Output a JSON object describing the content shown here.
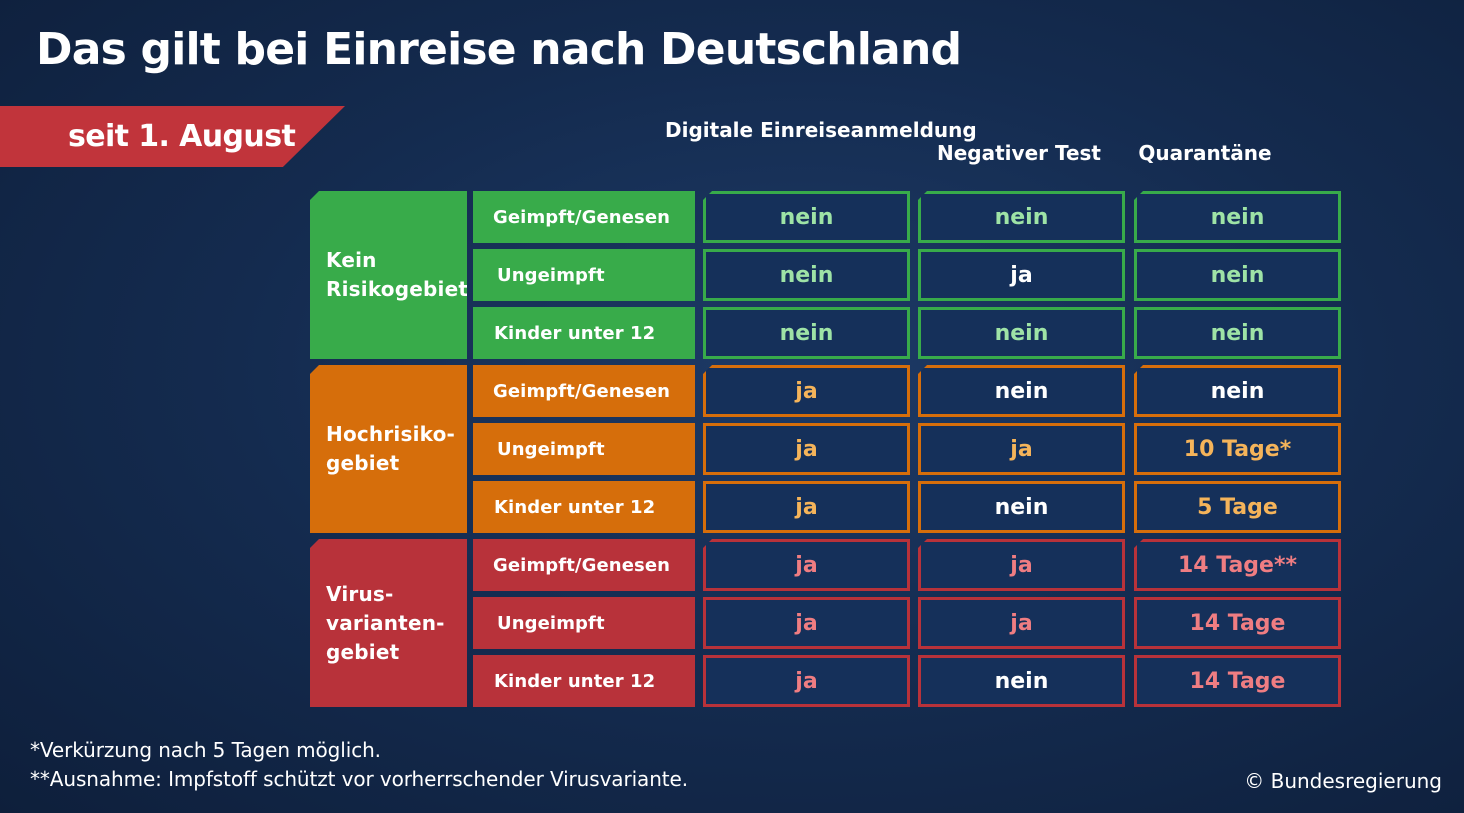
{
  "title": "Das gilt bei Einreise nach Deutschland",
  "banner": "seit 1. August",
  "columns": [
    "Digitale\nEinreiseanmeldung",
    "Negativer Test",
    "Quarantäne"
  ],
  "colors": {
    "green": "#38ab4a",
    "orange": "#d66e0b",
    "red": "#b8323a",
    "green_text": "#9ee3a6",
    "orange_text": "#f5b45a",
    "red_text": "#ef7d82",
    "cell_bg": "#15305a"
  },
  "groups": [
    {
      "label": "Kein\nRisikogebiet",
      "color": "green",
      "rows": [
        {
          "label": "Geimpft/Genesen",
          "values": [
            "nein",
            "nein",
            "nein"
          ]
        },
        {
          "label": "Ungeimpft",
          "values": [
            "nein",
            "ja",
            "nein"
          ]
        },
        {
          "label": "Kinder unter 12",
          "values": [
            "nein",
            "nein",
            "nein"
          ]
        }
      ]
    },
    {
      "label": "Hochrisiko-\ngebiet",
      "color": "orange",
      "rows": [
        {
          "label": "Geimpft/Genesen",
          "values": [
            "ja",
            "nein",
            "nein"
          ]
        },
        {
          "label": "Ungeimpft",
          "values": [
            "ja",
            "ja",
            "10 Tage*"
          ]
        },
        {
          "label": "Kinder unter 12",
          "values": [
            "ja",
            "nein",
            "5 Tage"
          ]
        }
      ]
    },
    {
      "label": "Virus-\nvarianten-\ngebiet",
      "color": "red",
      "rows": [
        {
          "label": "Geimpft/Genesen",
          "values": [
            "ja",
            "ja",
            "14 Tage**"
          ]
        },
        {
          "label": "Ungeimpft",
          "values": [
            "ja",
            "ja",
            "14 Tage"
          ]
        },
        {
          "label": "Kinder unter 12",
          "values": [
            "ja",
            "nein",
            "14 Tage"
          ]
        }
      ]
    }
  ],
  "footnotes": [
    "*Verkürzung nach 5 Tagen möglich.",
    "**Ausnahme: Impfstoff schützt vor vorherrschender Virusvariante."
  ],
  "copyright": "© Bundesregierung"
}
